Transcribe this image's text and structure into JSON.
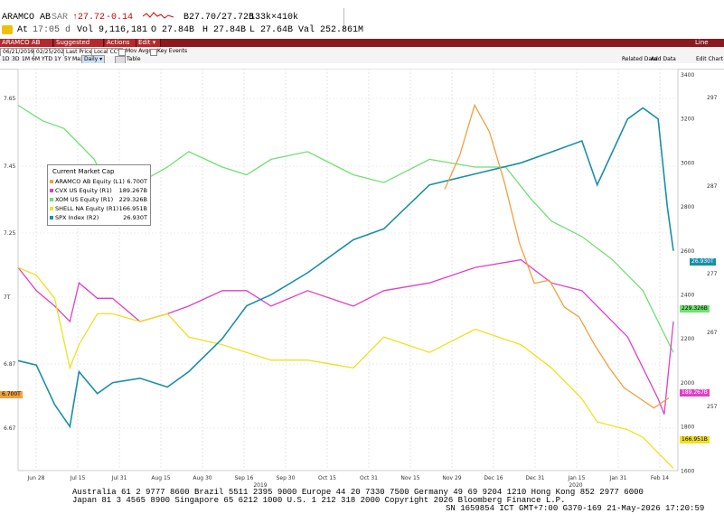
{
  "header": {
    "ticker": "ARAMCO AB",
    "currency": "SAR",
    "price": "↑27.72",
    "change": "-0.14",
    "bid_ask": "B27.70/27.72B",
    "size": "133k×410k",
    "line2_prefix": "At",
    "time": "17:05 d",
    "vol": "Vol 9,116,181",
    "open": "O 27.84B",
    "high": "H 27.84B",
    "low": "L 27.64B",
    "val": "Val 252.861M"
  },
  "toolbar": {
    "security": "ARAMCO AB Equity",
    "suggested": "Suggested Charts ▾",
    "actions": "Actions ▾",
    "edit": "Edit ▾",
    "right": "Line Chart"
  },
  "controls": {
    "start_date": "06/21/2019",
    "end_date": "02/25/2020",
    "field": "Last Price",
    "currency": "Local CCY",
    "periods": [
      "1D",
      "3D",
      "1M",
      "6M",
      "YTD",
      "1Y",
      "5Y",
      "Max"
    ],
    "frequency": "Daily ▾",
    "mov_avgs": "Mov Avgs",
    "key_events": "Key Events",
    "table": "Table",
    "related_data": "Related Data",
    "add_data": "Add Data",
    "edit_chart": "Edit Chart"
  },
  "legend": {
    "title": "Current Market Cap",
    "items": [
      {
        "name": "ARAMCO AB Equity  (L1)",
        "value": "6.700T",
        "color": "#f0a040"
      },
      {
        "name": "CVX US Equity  (R1)",
        "value": "189.267B",
        "color": "#e040c8"
      },
      {
        "name": "XOM US Equity  (R1)",
        "value": "229.326B",
        "color": "#70e070"
      },
      {
        "name": "SHELL NA Equity  (R1)",
        "value": "166.951B",
        "color": "#f0e020"
      },
      {
        "name": "SPX Index  (R2)",
        "value": "26.930T",
        "color": "#1a8fa8"
      }
    ]
  },
  "value_tags": {
    "aramco": "6.700T",
    "spx": "26.930T",
    "xom": "229.326B",
    "cvx": "189.267B",
    "shell": "166.951B"
  },
  "chart_data": {
    "type": "line",
    "x_ticks": [
      "Jun 28",
      "Jul 15",
      "Jul 31",
      "Aug 15",
      "Aug 30",
      "Sep 16",
      "Sep 30",
      "Oct 15",
      "Oct 31",
      "Nov 15",
      "Nov 29",
      "Dec 16",
      "Dec 31",
      "Jan 15",
      "Jan 31",
      "Feb 14"
    ],
    "year_labels": [
      "2019",
      "2020"
    ],
    "left_axis_L1": {
      "ticks": [
        "7.65",
        "7.45",
        "7.25",
        "7T",
        "6.87",
        "6.67"
      ]
    },
    "right_axis_R1": {
      "ticks": [
        "297",
        "287",
        "277",
        "267",
        "257"
      ]
    },
    "right_axis_R2": {
      "ticks": [
        "3400",
        "3200",
        "3000",
        "2800",
        "2600",
        "2400",
        "2200",
        "2000",
        "1800",
        "1600"
      ]
    },
    "series": [
      {
        "name": "ARAMCO AB Equity  (L1)",
        "color": "#f0a040",
        "x": [
          0,
          2,
          4,
          6,
          8,
          10,
          12,
          14,
          16,
          18,
          20,
          22,
          24,
          26,
          28,
          30
        ],
        "values": [
          7.38,
          7.48,
          7.63,
          7.55,
          7.4,
          7.22,
          7.1,
          7.11,
          7.03,
          7.0,
          6.92,
          6.85,
          6.79,
          6.76,
          6.73,
          6.76
        ]
      },
      {
        "name": "CVX US Equity  (R1)",
        "color": "#e040c8",
        "values": [
          [
            0,
            275
          ],
          [
            6,
            272
          ],
          [
            12,
            270
          ],
          [
            17,
            268
          ],
          [
            20,
            273
          ],
          [
            26,
            271
          ],
          [
            31,
            271
          ],
          [
            40,
            268
          ],
          [
            49,
            269
          ],
          [
            56,
            270
          ],
          [
            67,
            272
          ],
          [
            75,
            272
          ],
          [
            83,
            270
          ],
          [
            95,
            272
          ],
          [
            110,
            270
          ],
          [
            120,
            272
          ],
          [
            135,
            273
          ],
          [
            150,
            275
          ],
          [
            165,
            276
          ],
          [
            175,
            273
          ],
          [
            185,
            272
          ],
          [
            190,
            270
          ],
          [
            200,
            266
          ],
          [
            205,
            262
          ],
          [
            210,
            258
          ],
          [
            212,
            256
          ],
          [
            215,
            268
          ]
        ]
      },
      {
        "name": "XOM US Equity  (R1)",
        "color": "#70e070",
        "values": [
          [
            0,
            296
          ],
          [
            8,
            294
          ],
          [
            15,
            293
          ],
          [
            25,
            289
          ],
          [
            31,
            284
          ],
          [
            40,
            286
          ],
          [
            49,
            288
          ],
          [
            56,
            290
          ],
          [
            67,
            288
          ],
          [
            75,
            287
          ],
          [
            83,
            289
          ],
          [
            95,
            290
          ],
          [
            110,
            287
          ],
          [
            120,
            286
          ],
          [
            135,
            289
          ],
          [
            150,
            288
          ],
          [
            160,
            288
          ],
          [
            168,
            284
          ],
          [
            175,
            281
          ],
          [
            185,
            279
          ],
          [
            195,
            276
          ],
          [
            205,
            272
          ],
          [
            210,
            268
          ],
          [
            215,
            264
          ]
        ]
      },
      {
        "name": "SHELL NA Equity  (R1)",
        "color": "#f0e020",
        "values": [
          [
            0,
            275
          ],
          [
            6,
            274
          ],
          [
            12,
            271
          ],
          [
            17,
            262
          ],
          [
            20,
            265
          ],
          [
            26,
            269
          ],
          [
            31,
            269
          ],
          [
            40,
            268
          ],
          [
            49,
            269
          ],
          [
            56,
            266
          ],
          [
            67,
            265
          ],
          [
            75,
            264
          ],
          [
            83,
            263
          ],
          [
            95,
            263
          ],
          [
            110,
            262
          ],
          [
            120,
            266
          ],
          [
            135,
            264
          ],
          [
            150,
            267
          ],
          [
            165,
            265
          ],
          [
            175,
            262
          ],
          [
            185,
            258
          ],
          [
            190,
            255
          ],
          [
            200,
            254
          ],
          [
            205,
            253
          ],
          [
            210,
            251
          ],
          [
            215,
            249
          ]
        ]
      },
      {
        "name": "SPX Index  (R2)",
        "color": "#1a8fa8",
        "values": [
          [
            0,
            2100
          ],
          [
            6,
            2080
          ],
          [
            12,
            1900
          ],
          [
            17,
            1800
          ],
          [
            20,
            2050
          ],
          [
            26,
            1950
          ],
          [
            31,
            2000
          ],
          [
            40,
            2020
          ],
          [
            49,
            1980
          ],
          [
            56,
            2050
          ],
          [
            67,
            2200
          ],
          [
            75,
            2350
          ],
          [
            83,
            2400
          ],
          [
            95,
            2500
          ],
          [
            110,
            2650
          ],
          [
            120,
            2700
          ],
          [
            135,
            2900
          ],
          [
            150,
            2950
          ],
          [
            165,
            3000
          ],
          [
            175,
            3050
          ],
          [
            185,
            3100
          ],
          [
            190,
            2900
          ],
          [
            200,
            3200
          ],
          [
            205,
            3250
          ],
          [
            210,
            3200
          ],
          [
            213,
            2800
          ],
          [
            215,
            2600
          ]
        ]
      }
    ]
  },
  "footer": {
    "line1": "Australia 61 2 9777 8600 Brazil 5511 2395 9000 Europe 44 20 7330 7500 Germany 49 69 9204 1210 Hong Kong 852 2977 6000",
    "line2": "Japan 81 3 4565 8900        Singapore 65 6212 1000       U.S. 1 212 318 2000         Copyright 2026 Bloomberg Finance L.P.",
    "line3": "SN 1659854 ICT  GMT+7:00 G370-169 21-May-2026 17:20:59"
  }
}
